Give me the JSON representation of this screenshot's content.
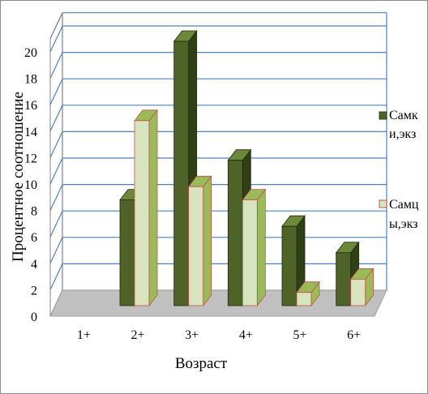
{
  "chart_data": {
    "type": "bar",
    "categories": [
      "1+",
      "2+",
      "3+",
      "4+",
      "5+",
      "6+"
    ],
    "series": [
      {
        "name": "Самки,экз",
        "values": [
          0,
          8,
          20,
          11,
          6,
          4
        ],
        "color": "#4f6228",
        "top_color": "#6a8a3a",
        "side_color": "#2f4016"
      },
      {
        "name": "Самцы,экз",
        "values": [
          0,
          14,
          9,
          8,
          1,
          2
        ],
        "color": "#d7e4bd",
        "top_color": "#9bbb59",
        "side_color": "#9bbb59",
        "stroke": "#c0504d"
      }
    ],
    "y_ticks": [
      0,
      2,
      4,
      6,
      8,
      10,
      12,
      14,
      16,
      18,
      20
    ],
    "ylim": [
      0,
      21
    ],
    "xlabel": "Возраст",
    "ylabel": "Процентное соотношение",
    "legend": {
      "placement": "right",
      "lines": [
        [
          "Самк",
          "и,экз"
        ],
        [
          "Самц",
          "ы,экз"
        ]
      ]
    },
    "grid": true,
    "colors": {
      "gridline": "#4f81bd",
      "floor": "#c0c0c0"
    }
  }
}
